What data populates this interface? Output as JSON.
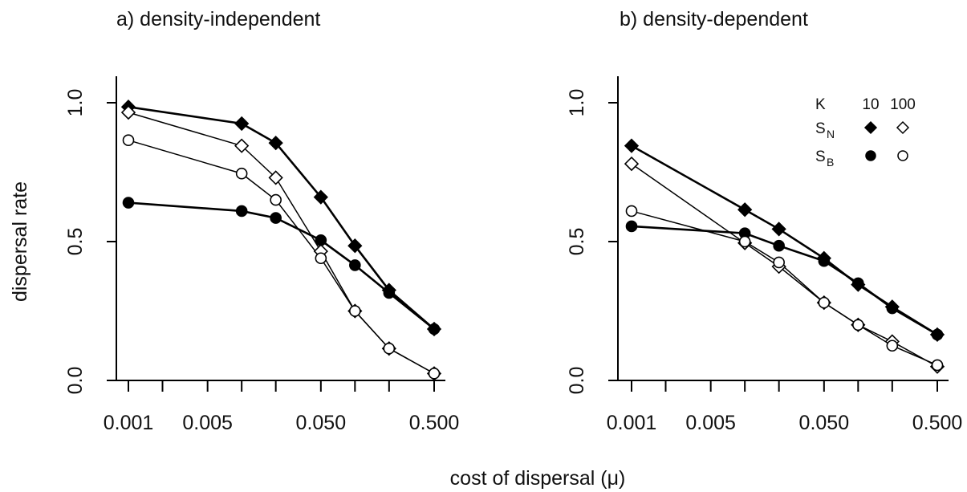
{
  "figure": {
    "xlabel": "cost of dispersal (μ)"
  },
  "chart_data": [
    {
      "type": "line",
      "title": "a) density-independent",
      "ylabel": "dispersal rate",
      "xlabel": "cost of dispersal (μ)",
      "x_scale": "log",
      "xlim": [
        0.001,
        0.5
      ],
      "ylim": [
        0,
        1
      ],
      "x_ticks": [
        0.001,
        0.002,
        0.005,
        0.01,
        0.02,
        0.05,
        0.1,
        0.2,
        0.5
      ],
      "x_tick_labels": [
        "0.001",
        "0.005",
        "0.050",
        "0.500"
      ],
      "y_tick_labels": [
        "0.0",
        "0.5",
        "1.0"
      ],
      "x": [
        0.001,
        0.01,
        0.02,
        0.05,
        0.1,
        0.2,
        0.5
      ],
      "series": [
        {
          "marker": "filled-diamond",
          "values": [
            0.985,
            0.925,
            0.855,
            0.66,
            0.485,
            0.325,
            0.185
          ]
        },
        {
          "marker": "open-diamond",
          "values": [
            0.965,
            0.845,
            0.73,
            0.465,
            0.25,
            0.115,
            0.025
          ]
        },
        {
          "marker": "open-circle",
          "values": [
            0.865,
            0.745,
            0.65,
            0.44,
            0.25,
            0.115,
            0.025
          ]
        },
        {
          "marker": "filled-circle",
          "values": [
            0.64,
            0.61,
            0.585,
            0.505,
            0.415,
            0.315,
            0.185
          ]
        }
      ]
    },
    {
      "type": "line",
      "title": "b) density-dependent",
      "ylabel": "",
      "xlabel": "cost of dispersal (μ)",
      "x_scale": "log",
      "xlim": [
        0.001,
        0.5
      ],
      "ylim": [
        0,
        1
      ],
      "x_ticks": [
        0.001,
        0.002,
        0.005,
        0.01,
        0.02,
        0.05,
        0.1,
        0.2,
        0.5
      ],
      "x_tick_labels": [
        "0.001",
        "0.005",
        "0.050",
        "0.500"
      ],
      "y_tick_labels": [
        "0.0",
        "0.5",
        "1.0"
      ],
      "x": [
        0.001,
        0.01,
        0.02,
        0.05,
        0.1,
        0.2,
        0.5
      ],
      "series": [
        {
          "marker": "filled-diamond",
          "values": [
            0.845,
            0.615,
            0.545,
            0.44,
            0.345,
            0.265,
            0.165
          ]
        },
        {
          "marker": "filled-circle",
          "values": [
            0.555,
            0.53,
            0.485,
            0.43,
            0.35,
            0.26,
            0.165
          ]
        },
        {
          "marker": "open-diamond",
          "values": [
            0.78,
            0.495,
            0.41,
            0.28,
            0.2,
            0.14,
            0.05
          ]
        },
        {
          "marker": "open-circle",
          "values": [
            0.61,
            0.5,
            0.425,
            0.28,
            0.2,
            0.125,
            0.055
          ]
        }
      ],
      "legend": {
        "placement": "top-right",
        "header": {
          "label": "K",
          "cols": [
            "10",
            "100"
          ]
        },
        "rows": [
          {
            "label": "S",
            "sub": "N",
            "markers": [
              "filled-diamond",
              "open-diamond"
            ]
          },
          {
            "label": "S",
            "sub": "B",
            "markers": [
              "filled-circle",
              "open-circle"
            ]
          }
        ]
      }
    }
  ]
}
